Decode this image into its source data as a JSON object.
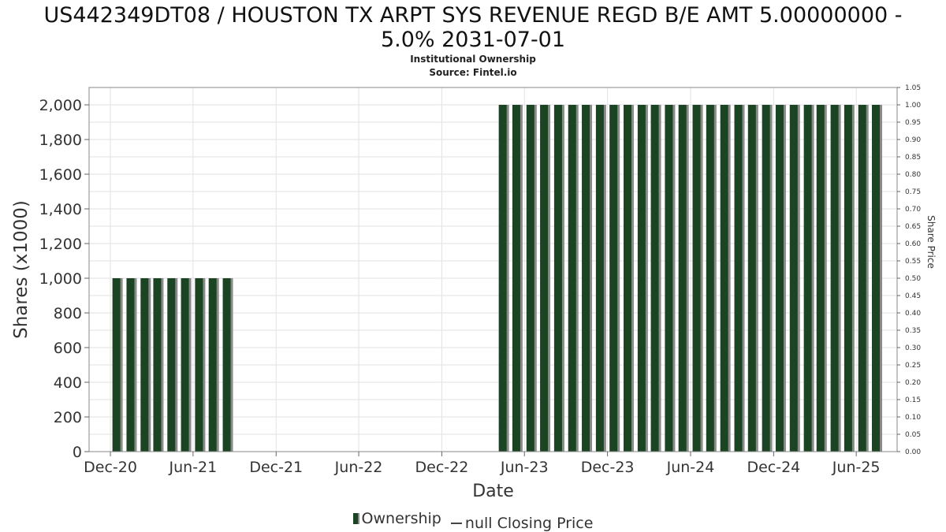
{
  "title_line1": "US442349DT08 / HOUSTON TX ARPT SYS REVENUE REGD B/E AMT 5.00000000 -",
  "title_line2": "5.0% 2031-07-01",
  "subtitle": "Institutional Ownership",
  "source": "Source: Fintel.io",
  "legend": {
    "ownership": "Ownership",
    "closing_price": "null Closing Price"
  },
  "colors": {
    "bar": "#1b4422",
    "bar_shadow": "#8a8a8a",
    "grid": "#e2e2e2"
  },
  "chart_data": {
    "type": "bar",
    "xlabel": "Date",
    "ylabel": "Shares (x1000)",
    "y2label": "Share Price",
    "ylim": [
      0,
      2100
    ],
    "y2lim": [
      0,
      1.05
    ],
    "xlim": [
      "2020-10-15",
      "2025-08-30"
    ],
    "grid": true,
    "legend_position": "bottom",
    "y_ticks": [
      0,
      200,
      400,
      600,
      800,
      1000,
      1200,
      1400,
      1600,
      1800,
      2000
    ],
    "y_tick_labels": [
      "0",
      "200",
      "400",
      "600",
      "800",
      "1,000",
      "1,200",
      "1,400",
      "1,600",
      "1,800",
      "2,000"
    ],
    "y2_ticks": [
      "0.00",
      "0.05",
      "0.10",
      "0.15",
      "0.20",
      "0.25",
      "0.30",
      "0.35",
      "0.40",
      "0.45",
      "0.50",
      "0.55",
      "0.60",
      "0.65",
      "0.70",
      "0.75",
      "0.80",
      "0.85",
      "0.90",
      "0.95",
      "1.00",
      "1.05"
    ],
    "x_ticks": [
      {
        "date": "2020-12-01",
        "label": "Dec-20"
      },
      {
        "date": "2021-06-01",
        "label": "Jun-21"
      },
      {
        "date": "2021-12-01",
        "label": "Dec-21"
      },
      {
        "date": "2022-06-01",
        "label": "Jun-22"
      },
      {
        "date": "2022-12-01",
        "label": "Dec-22"
      },
      {
        "date": "2023-06-01",
        "label": "Jun-23"
      },
      {
        "date": "2023-12-01",
        "label": "Dec-23"
      },
      {
        "date": "2024-06-01",
        "label": "Jun-24"
      },
      {
        "date": "2024-12-01",
        "label": "Dec-24"
      },
      {
        "date": "2025-06-01",
        "label": "Jun-25"
      }
    ],
    "series": [
      {
        "name": "Ownership",
        "x": [
          "2020-12-15",
          "2021-01-15",
          "2021-02-15",
          "2021-03-15",
          "2021-04-15",
          "2021-05-15",
          "2021-06-15",
          "2021-07-15",
          "2021-08-15",
          "2023-04-15",
          "2023-05-15",
          "2023-06-15",
          "2023-07-15",
          "2023-08-15",
          "2023-09-15",
          "2023-10-15",
          "2023-11-15",
          "2023-12-15",
          "2024-01-15",
          "2024-02-15",
          "2024-03-15",
          "2024-04-15",
          "2024-05-15",
          "2024-06-15",
          "2024-07-15",
          "2024-08-15",
          "2024-09-15",
          "2024-10-15",
          "2024-11-15",
          "2024-12-15",
          "2025-01-15",
          "2025-02-15",
          "2025-03-15",
          "2025-04-15",
          "2025-05-15",
          "2025-06-15",
          "2025-07-15"
        ],
        "values": [
          1000,
          1000,
          1000,
          1000,
          1000,
          1000,
          1000,
          1000,
          1000,
          2000,
          2000,
          2000,
          2000,
          2000,
          2000,
          2000,
          2000,
          2000,
          2000,
          2000,
          2000,
          2000,
          2000,
          2000,
          2000,
          2000,
          2000,
          2000,
          2000,
          2000,
          2000,
          2000,
          2000,
          2000,
          2000,
          2000,
          2000
        ]
      }
    ]
  }
}
